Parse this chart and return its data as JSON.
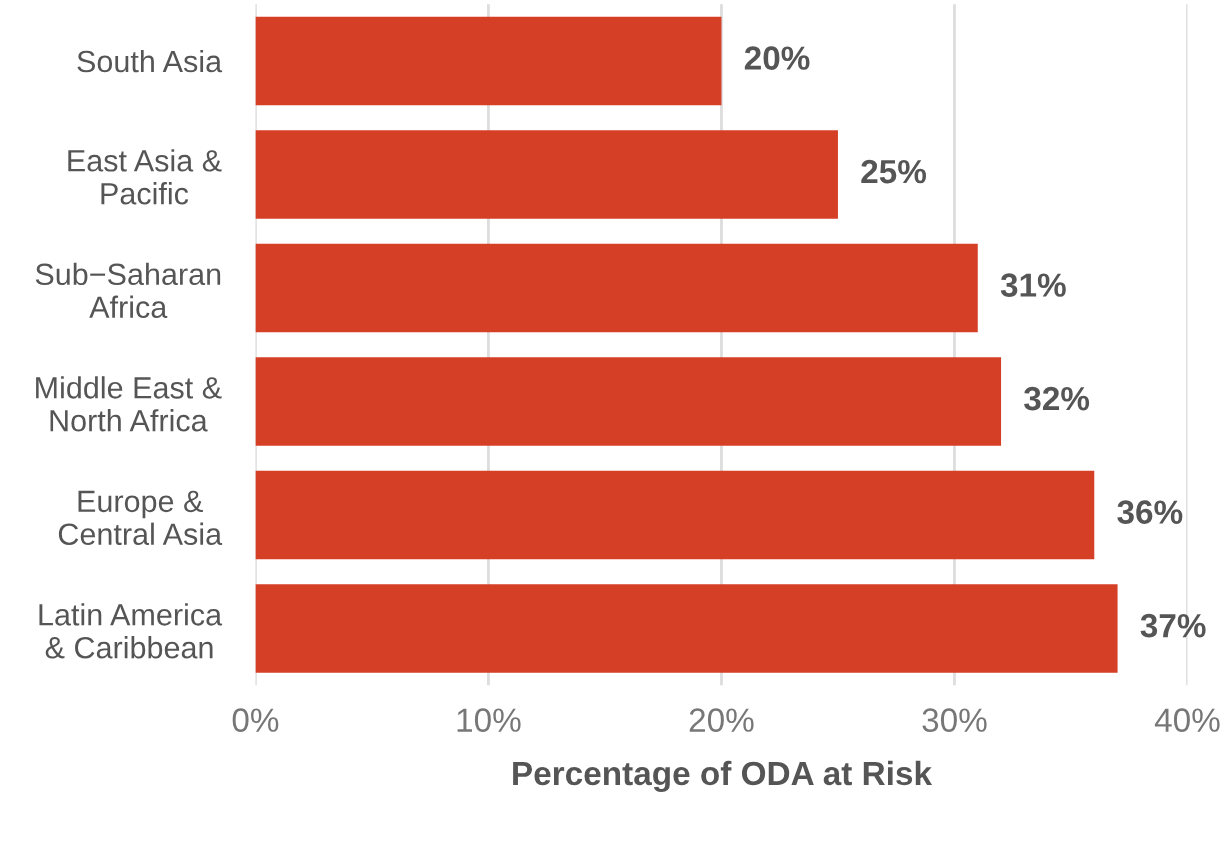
{
  "chart_data": {
    "type": "bar",
    "orientation": "horizontal",
    "categories": [
      "South Asia",
      "East Asia &\nPacific",
      "Sub−Saharan\nAfrica",
      "Middle East &\nNorth Africa",
      "Europe &\nCentral Asia",
      "Latin America\n& Caribbean"
    ],
    "values": [
      20,
      25,
      31,
      32,
      36,
      37
    ],
    "color": "#d53f26",
    "value_labels": [
      "20%",
      "25%",
      "31%",
      "32%",
      "36%",
      "37%"
    ],
    "xlim": [
      0,
      40
    ],
    "xticks": [
      {
        "value": 0,
        "label": "0%"
      },
      {
        "value": 10,
        "label": "10%"
      },
      {
        "value": 20,
        "label": "20%"
      },
      {
        "value": 30,
        "label": "30%"
      },
      {
        "value": 40,
        "label": "40%"
      }
    ],
    "xlabel": "Percentage of ODA at Risk",
    "grid": "x"
  }
}
